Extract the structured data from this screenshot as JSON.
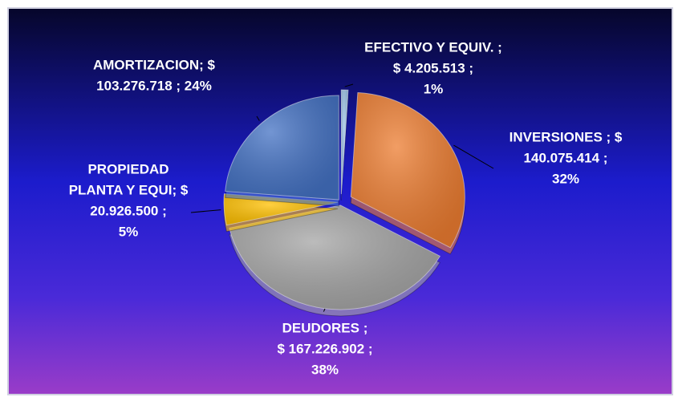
{
  "chart_data": {
    "type": "pie",
    "values": [
      4205513,
      140075414,
      167226902,
      20926500,
      103276718
    ],
    "label_lines": [
      [
        "EFECTIVO Y EQUIV. ;",
        "$ 4.205.513 ;",
        "1%"
      ],
      [
        "INVERSIONES ;  $",
        "140.075.414 ;",
        "32%"
      ],
      [
        "DEUDORES ;",
        "$ 167.226.902 ;",
        "38%"
      ],
      [
        "PROPIEDAD",
        "PLANTA Y EQUI;  $",
        "20.926.500 ;",
        "5%"
      ],
      [
        "AMORTIZACION;  $",
        "103.276.718 ; 24%"
      ]
    ],
    "colors": [
      "#9dc3e6",
      "#ed7d31",
      "#a5a5a5",
      "#ffc000",
      "#4472c4"
    ]
  }
}
